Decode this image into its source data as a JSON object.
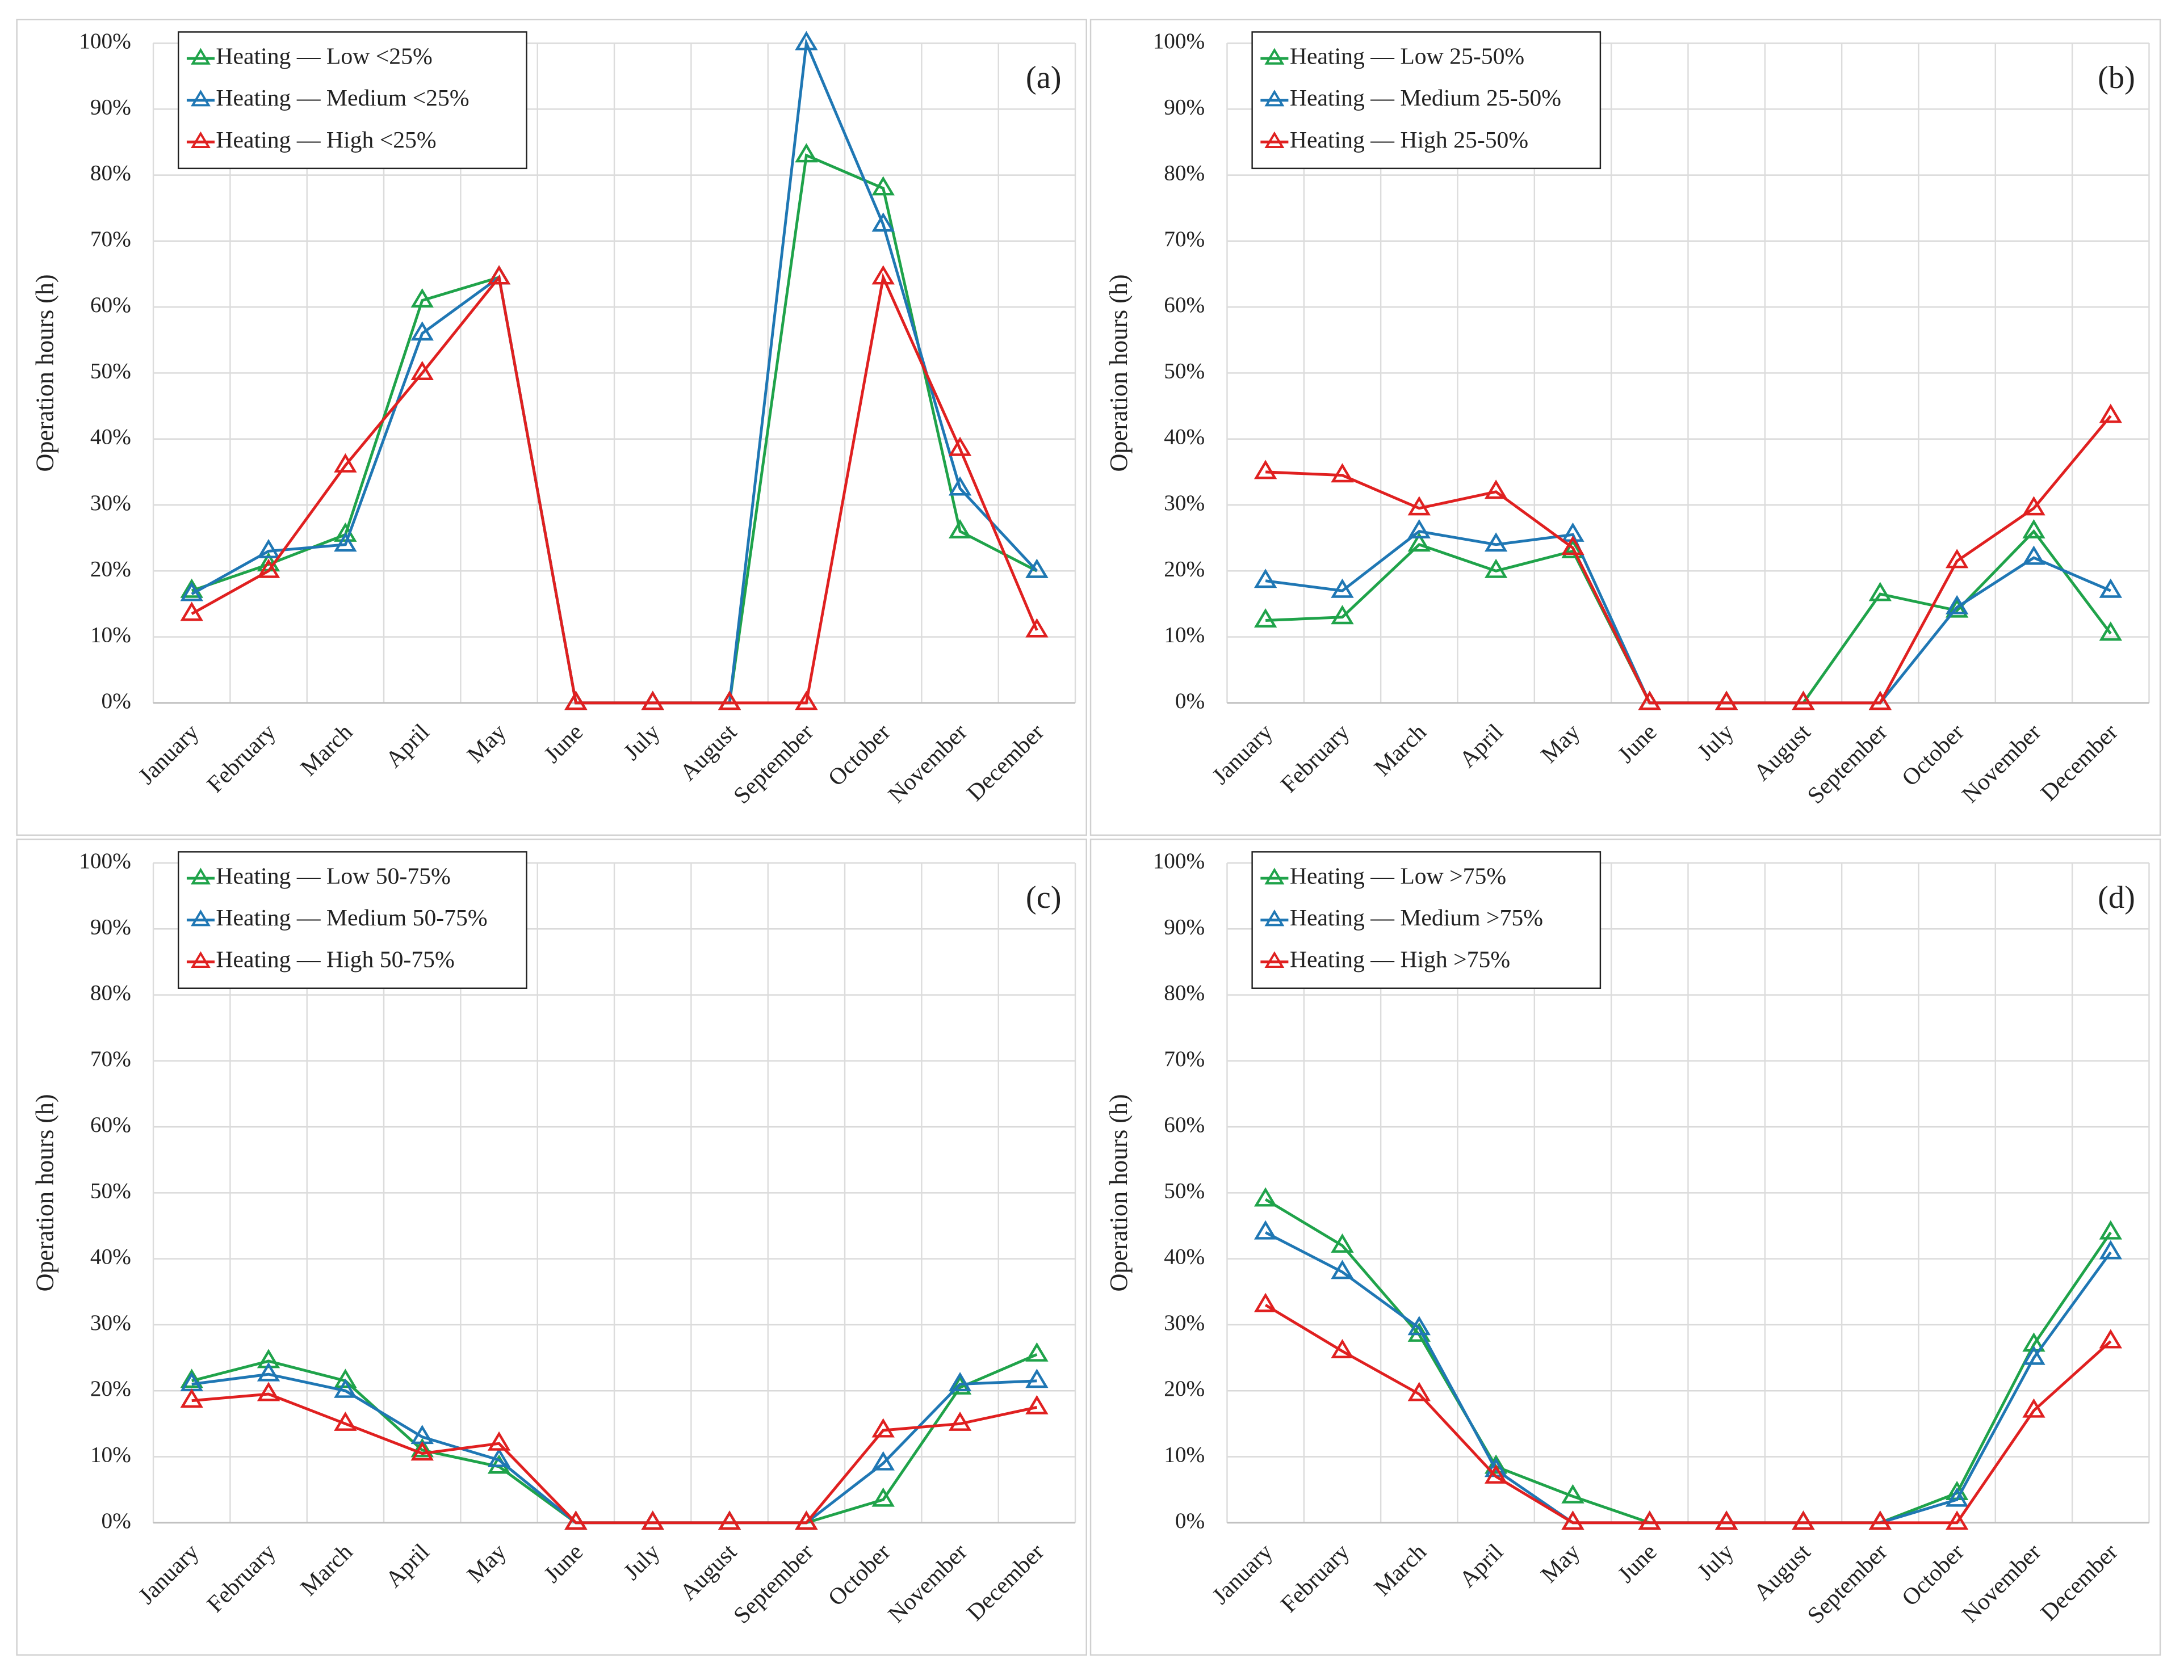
{
  "chart_data": [
    {
      "type": "line",
      "annotation": "(a)",
      "y_label": "Operation hours (h)",
      "legend": "upper left",
      "categories": [
        "January",
        "February",
        "March",
        "April",
        "May",
        "June",
        "July",
        "August",
        "September",
        "October",
        "November",
        "December"
      ],
      "series": [
        {
          "name": "Heating — Low <25%",
          "color": "#1fa34a",
          "values": [
            17,
            21,
            25.5,
            61,
            64.5,
            0,
            0,
            0,
            83,
            78,
            26,
            20
          ]
        },
        {
          "name": "Heating — Medium <25%",
          "color": "#1f77b4",
          "values": [
            16.5,
            23,
            24,
            56,
            64.5,
            0,
            0,
            0,
            100,
            72.5,
            32.5,
            20
          ]
        },
        {
          "name": "Heating — High <25%",
          "color": "#e02020",
          "values": [
            13.5,
            20,
            36,
            50,
            64.5,
            0,
            0,
            0,
            0,
            64.5,
            38.5,
            11
          ]
        }
      ],
      "ylim": [
        0,
        100
      ],
      "yticks": [
        {
          "value": 0,
          "label": "0%"
        },
        {
          "value": 10,
          "label": "10%"
        },
        {
          "value": 20,
          "label": "20%"
        },
        {
          "value": 30,
          "label": "30%"
        },
        {
          "value": 40,
          "label": "40%"
        },
        {
          "value": 50,
          "label": "50%"
        },
        {
          "value": 60,
          "label": "60%"
        },
        {
          "value": 70,
          "label": "70%"
        },
        {
          "value": 80,
          "label": "80%"
        },
        {
          "value": 90,
          "label": "90%"
        },
        {
          "value": 100,
          "label": "100%"
        }
      ],
      "grid": true
    },
    {
      "type": "line",
      "annotation": "(b)",
      "y_label": "Operation hours (h)",
      "legend": "upper left",
      "categories": [
        "January",
        "February",
        "March",
        "April",
        "May",
        "June",
        "July",
        "August",
        "September",
        "October",
        "November",
        "December"
      ],
      "series": [
        {
          "name": "Heating — Low 25-50%",
          "color": "#1fa34a",
          "values": [
            12.5,
            13,
            24,
            20,
            23,
            0,
            0,
            0,
            16.5,
            14,
            26,
            10.5
          ]
        },
        {
          "name": "Heating — Medium 25-50%",
          "color": "#1f77b4",
          "values": [
            18.5,
            17,
            26,
            24,
            25.5,
            0,
            0,
            0,
            0,
            14.5,
            22,
            17
          ]
        },
        {
          "name": "Heating — High 25-50%",
          "color": "#e02020",
          "values": [
            35,
            34.5,
            29.5,
            32,
            23.5,
            0,
            0,
            0,
            0,
            21.5,
            29.5,
            43.5
          ]
        }
      ],
      "ylim": [
        0,
        100
      ],
      "yticks": [
        {
          "value": 0,
          "label": "0%"
        },
        {
          "value": 10,
          "label": "10%"
        },
        {
          "value": 20,
          "label": "20%"
        },
        {
          "value": 30,
          "label": "30%"
        },
        {
          "value": 40,
          "label": "40%"
        },
        {
          "value": 50,
          "label": "50%"
        },
        {
          "value": 60,
          "label": "60%"
        },
        {
          "value": 70,
          "label": "70%"
        },
        {
          "value": 80,
          "label": "80%"
        },
        {
          "value": 90,
          "label": "90%"
        },
        {
          "value": 100,
          "label": "100%"
        }
      ],
      "grid": true
    },
    {
      "type": "line",
      "annotation": "(c)",
      "y_label": "Operation hours (h)",
      "legend": "upper left",
      "categories": [
        "January",
        "February",
        "March",
        "April",
        "May",
        "June",
        "July",
        "August",
        "September",
        "October",
        "November",
        "December"
      ],
      "series": [
        {
          "name": "Heating — Low 50-75%",
          "color": "#1fa34a",
          "values": [
            21.5,
            24.5,
            21.5,
            11,
            8.5,
            0,
            0,
            0,
            0,
            3.5,
            20.5,
            25.5
          ]
        },
        {
          "name": "Heating — Medium 50-75%",
          "color": "#1f77b4",
          "values": [
            21,
            22.5,
            20,
            13,
            9.5,
            0,
            0,
            0,
            0,
            9,
            21,
            21.5
          ]
        },
        {
          "name": "Heating — High 50-75%",
          "color": "#e02020",
          "values": [
            18.5,
            19.5,
            15,
            10.5,
            12,
            0,
            0,
            0,
            0,
            14,
            15,
            17.5
          ]
        }
      ],
      "ylim": [
        0,
        100
      ],
      "yticks": [
        {
          "value": 0,
          "label": "0%"
        },
        {
          "value": 10,
          "label": "10%"
        },
        {
          "value": 20,
          "label": "20%"
        },
        {
          "value": 30,
          "label": "30%"
        },
        {
          "value": 40,
          "label": "40%"
        },
        {
          "value": 50,
          "label": "50%"
        },
        {
          "value": 60,
          "label": "60%"
        },
        {
          "value": 70,
          "label": "70%"
        },
        {
          "value": 80,
          "label": "80%"
        },
        {
          "value": 90,
          "label": "90%"
        },
        {
          "value": 100,
          "label": "100%"
        }
      ],
      "grid": true
    },
    {
      "type": "line",
      "annotation": "(d)",
      "y_label": "Operation hours (h)",
      "legend": "upper left",
      "categories": [
        "January",
        "February",
        "March",
        "April",
        "May",
        "June",
        "July",
        "August",
        "September",
        "October",
        "November",
        "December"
      ],
      "series": [
        {
          "name": "Heating — Low >75%",
          "color": "#1fa34a",
          "values": [
            49,
            42,
            28.5,
            8.5,
            4,
            0,
            0,
            0,
            0,
            4.5,
            27,
            44
          ]
        },
        {
          "name": "Heating — Medium >75%",
          "color": "#1f77b4",
          "values": [
            44,
            38,
            29.5,
            8,
            0,
            0,
            0,
            0,
            0,
            3.5,
            25,
            41
          ]
        },
        {
          "name": "Heating — High >75%",
          "color": "#e02020",
          "values": [
            33,
            26,
            19.5,
            7,
            0,
            0,
            0,
            0,
            0,
            0,
            17,
            27.5
          ]
        }
      ],
      "ylim": [
        0,
        100
      ],
      "yticks": [
        {
          "value": 0,
          "label": "0%"
        },
        {
          "value": 10,
          "label": "10%"
        },
        {
          "value": 20,
          "label": "20%"
        },
        {
          "value": 30,
          "label": "30%"
        },
        {
          "value": 40,
          "label": "40%"
        },
        {
          "value": 50,
          "label": "50%"
        },
        {
          "value": 60,
          "label": "60%"
        },
        {
          "value": 70,
          "label": "70%"
        },
        {
          "value": 80,
          "label": "80%"
        },
        {
          "value": 90,
          "label": "90%"
        },
        {
          "value": 100,
          "label": "100%"
        }
      ],
      "grid": true
    }
  ]
}
